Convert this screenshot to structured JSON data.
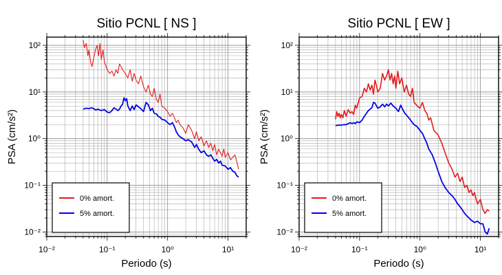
{
  "chart_data": [
    {
      "type": "line",
      "title": "Sitio PCNL [ NS ]",
      "xlabel": "Periodo (s)",
      "ylabel": "PSA (cm/s²)",
      "xscale": "log",
      "yscale": "log",
      "xlim": [
        0.01,
        20
      ],
      "ylim": [
        0.008,
        150
      ],
      "xticks": [
        "10⁻²",
        "10⁻¹",
        "10⁰",
        "10¹"
      ],
      "yticks": [
        "10⁻²",
        "10⁻¹",
        "10⁰",
        "10¹",
        "10²"
      ],
      "grid": true,
      "legend": "bottom-left",
      "series": [
        {
          "name": "0% amort.",
          "color": "#e31a1c",
          "x": [
            0.04,
            0.042,
            0.045,
            0.048,
            0.05,
            0.053,
            0.056,
            0.06,
            0.064,
            0.068,
            0.072,
            0.076,
            0.08,
            0.085,
            0.09,
            0.1,
            0.11,
            0.12,
            0.13,
            0.14,
            0.15,
            0.16,
            0.17,
            0.18,
            0.2,
            0.22,
            0.24,
            0.26,
            0.28,
            0.3,
            0.33,
            0.36,
            0.4,
            0.44,
            0.48,
            0.52,
            0.56,
            0.6,
            0.65,
            0.7,
            0.75,
            0.8,
            0.9,
            1.0,
            1.1,
            1.2,
            1.3,
            1.4,
            1.5,
            1.6,
            1.8,
            2.0,
            2.2,
            2.5,
            2.8,
            3.0,
            3.3,
            3.6,
            4.0,
            4.4,
            4.8,
            5.2,
            5.6,
            6.0,
            6.5,
            7.0,
            7.5,
            8.0,
            8.5,
            9.0,
            10,
            11,
            12,
            13,
            14,
            15
          ],
          "y": [
            130,
            90,
            110,
            60,
            80,
            45,
            35,
            55,
            80,
            100,
            60,
            110,
            50,
            80,
            45,
            30,
            25,
            28,
            22,
            30,
            25,
            40,
            35,
            30,
            25,
            20,
            30,
            17,
            25,
            18,
            15,
            22,
            13,
            10,
            14,
            9,
            8,
            12,
            7,
            6,
            9,
            5,
            4.5,
            3.8,
            3.0,
            3.5,
            2.8,
            2.2,
            2.5,
            2.0,
            1.7,
            1.3,
            2.0,
            1.5,
            1.0,
            1.4,
            0.9,
            1.1,
            0.7,
            0.9,
            0.65,
            0.8,
            0.55,
            0.75,
            0.45,
            0.6,
            0.5,
            0.42,
            0.6,
            0.4,
            0.5,
            0.35,
            0.4,
            0.45,
            0.32,
            0.22
          ]
        },
        {
          "name": "5% amort.",
          "color": "#0000e6",
          "x": [
            0.04,
            0.045,
            0.05,
            0.055,
            0.06,
            0.065,
            0.07,
            0.08,
            0.09,
            0.1,
            0.11,
            0.12,
            0.13,
            0.14,
            0.15,
            0.16,
            0.17,
            0.18,
            0.19,
            0.2,
            0.21,
            0.22,
            0.24,
            0.26,
            0.28,
            0.3,
            0.33,
            0.36,
            0.4,
            0.44,
            0.48,
            0.52,
            0.56,
            0.6,
            0.65,
            0.7,
            0.75,
            0.8,
            0.9,
            1.0,
            1.1,
            1.2,
            1.3,
            1.4,
            1.5,
            1.6,
            1.8,
            2.0,
            2.2,
            2.5,
            2.8,
            3.0,
            3.3,
            3.6,
            4.0,
            4.4,
            4.8,
            5.2,
            5.6,
            6.0,
            6.5,
            7.0,
            7.5,
            8.0,
            9.0,
            10,
            11,
            12,
            13,
            14,
            15
          ],
          "y": [
            4.3,
            4.5,
            4.4,
            4.6,
            4.4,
            4.1,
            4.3,
            4.0,
            4.2,
            3.7,
            3.6,
            4.0,
            4.6,
            4.3,
            4.0,
            4.3,
            5.0,
            5.5,
            7.5,
            6.5,
            7.2,
            5.0,
            4.0,
            5.0,
            4.2,
            5.3,
            4.8,
            4.4,
            3.8,
            6.0,
            5.3,
            4.0,
            4.5,
            3.5,
            3.4,
            3.0,
            2.9,
            2.6,
            2.5,
            2.2,
            2.0,
            2.2,
            1.8,
            1.4,
            1.2,
            1.1,
            1.0,
            0.9,
            0.95,
            0.85,
            0.65,
            0.75,
            0.58,
            0.5,
            0.55,
            0.45,
            0.42,
            0.45,
            0.38,
            0.33,
            0.36,
            0.3,
            0.33,
            0.27,
            0.26,
            0.22,
            0.24,
            0.2,
            0.19,
            0.16,
            0.15
          ]
        }
      ]
    },
    {
      "type": "line",
      "title": "Sitio PCNL [ EW ]",
      "xlabel": "Periodo (s)",
      "ylabel": "PSA (cm/s²)",
      "xscale": "log",
      "yscale": "log",
      "xlim": [
        0.01,
        20
      ],
      "ylim": [
        0.008,
        150
      ],
      "xticks": [
        "10⁻²",
        "10⁻¹",
        "10⁰",
        "10¹"
      ],
      "yticks": [
        "10⁻²",
        "10⁻¹",
        "10⁰",
        "10¹",
        "10²"
      ],
      "grid": true,
      "legend": "bottom-left",
      "series": [
        {
          "name": "0% amort.",
          "color": "#e31a1c",
          "x": [
            0.04,
            0.042,
            0.044,
            0.046,
            0.048,
            0.05,
            0.053,
            0.056,
            0.06,
            0.065,
            0.07,
            0.075,
            0.08,
            0.085,
            0.09,
            0.1,
            0.11,
            0.12,
            0.13,
            0.14,
            0.15,
            0.16,
            0.17,
            0.18,
            0.19,
            0.2,
            0.22,
            0.24,
            0.26,
            0.28,
            0.3,
            0.32,
            0.34,
            0.36,
            0.38,
            0.4,
            0.43,
            0.46,
            0.5,
            0.55,
            0.6,
            0.65,
            0.7,
            0.75,
            0.8,
            0.9,
            1.0,
            1.1,
            1.2,
            1.3,
            1.4,
            1.5,
            1.7,
            2.0,
            2.3,
            2.6,
            3.0,
            3.4,
            3.8,
            4.2,
            4.6,
            5.0,
            5.5,
            6.0,
            6.5,
            7.0,
            7.5,
            8.0,
            8.5,
            9.0,
            10,
            11,
            12,
            13,
            14
          ],
          "y": [
            2.6,
            3.8,
            3.0,
            3.5,
            2.8,
            3.3,
            2.8,
            4.0,
            3.0,
            4.2,
            3.5,
            3.8,
            3.3,
            5.2,
            4.5,
            7.5,
            8.0,
            12,
            10,
            15,
            11,
            14,
            9,
            18,
            14,
            10,
            12,
            25,
            18,
            22,
            30,
            18,
            25,
            15,
            22,
            12,
            28,
            15,
            20,
            10,
            14,
            9,
            8,
            12,
            6,
            5,
            4.5,
            6,
            4.0,
            3.5,
            2.5,
            2.8,
            1.5,
            1.2,
            0.8,
            0.5,
            0.3,
            0.22,
            0.15,
            0.18,
            0.12,
            0.15,
            0.09,
            0.1,
            0.07,
            0.08,
            0.06,
            0.07,
            0.05,
            0.04,
            0.05,
            0.03,
            0.025,
            0.03,
            0.028
          ]
        },
        {
          "name": "5% amort.",
          "color": "#0000e6",
          "x": [
            0.04,
            0.045,
            0.05,
            0.055,
            0.06,
            0.065,
            0.07,
            0.075,
            0.08,
            0.085,
            0.09,
            0.1,
            0.11,
            0.12,
            0.13,
            0.14,
            0.15,
            0.16,
            0.17,
            0.18,
            0.2,
            0.22,
            0.24,
            0.26,
            0.28,
            0.3,
            0.33,
            0.36,
            0.4,
            0.44,
            0.48,
            0.52,
            0.56,
            0.6,
            0.65,
            0.7,
            0.75,
            0.8,
            0.9,
            1.0,
            1.1,
            1.2,
            1.3,
            1.4,
            1.6,
            1.8,
            2.0,
            2.3,
            2.6,
            3.0,
            3.4,
            3.8,
            4.2,
            4.6,
            5.0,
            5.5,
            6.0,
            6.5,
            7.0,
            7.5,
            8.0,
            9.0,
            10,
            11,
            12,
            13,
            14
          ],
          "y": [
            1.9,
            1.95,
            1.95,
            2.0,
            2.0,
            2.1,
            2.2,
            2.1,
            2.2,
            2.1,
            2.3,
            2.2,
            2.5,
            3.0,
            3.5,
            4.0,
            4.3,
            4.6,
            6.0,
            5.8,
            4.5,
            4.8,
            5.5,
            4.8,
            5.5,
            5.0,
            5.8,
            5.0,
            4.5,
            3.8,
            5.2,
            4.2,
            3.5,
            3.2,
            2.8,
            2.5,
            2.2,
            2.0,
            1.8,
            1.5,
            1.3,
            1.0,
            0.8,
            0.6,
            0.45,
            0.3,
            0.2,
            0.12,
            0.09,
            0.07,
            0.06,
            0.05,
            0.04,
            0.035,
            0.03,
            0.025,
            0.022,
            0.02,
            0.018,
            0.017,
            0.016,
            0.017,
            0.015,
            0.015,
            0.01,
            0.009,
            0.012
          ]
        }
      ]
    }
  ]
}
